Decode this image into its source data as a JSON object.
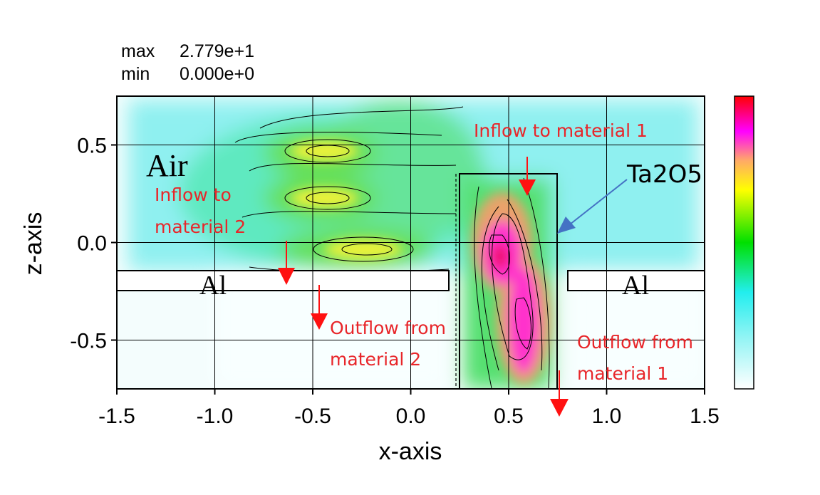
{
  "stats": {
    "max_label": "max",
    "max_value": "2.779e+1",
    "min_label": "min",
    "min_value": "0.000e+0"
  },
  "chart_data": {
    "type": "heatmap",
    "title": "",
    "xlabel": "x-axis",
    "ylabel": "z-axis",
    "xlim": [
      -1.5,
      1.5
    ],
    "ylim": [
      -0.75,
      0.75
    ],
    "x_ticks": [
      -1.5,
      -1.0,
      -0.5,
      0.0,
      0.5,
      1.0,
      1.5
    ],
    "x_tick_labels": [
      "-1.5",
      "-1.0",
      "-0.5",
      "0.0",
      "0.5",
      "1.0",
      "1.5"
    ],
    "y_ticks": [
      0.5,
      0.0,
      -0.5
    ],
    "y_tick_labels": [
      "0.5",
      "0.0",
      "-0.5"
    ],
    "grid": true,
    "value_range": [
      0,
      27.79
    ],
    "colorbar": {
      "colors": [
        "#ffffff",
        "#22eeee",
        "#00e000",
        "#ffff00",
        "#ff00ff",
        "#ff0000"
      ]
    },
    "hotspots": [
      {
        "x": -0.3,
        "z": 0.47,
        "value": 17
      },
      {
        "x": -0.3,
        "z": 0.23,
        "value": 16
      },
      {
        "x": -0.2,
        "z": -0.03,
        "value": 17
      },
      {
        "x": 0.48,
        "z": -0.1,
        "value": 27.79
      },
      {
        "x": 0.57,
        "z": -0.4,
        "value": 24
      }
    ],
    "regions": {
      "al_left": {
        "label": "Al",
        "x": [
          -1.5,
          0.2
        ],
        "z": [
          -0.245,
          -0.14
        ]
      },
      "al_right": {
        "label": "Al",
        "x": [
          0.8,
          1.5
        ],
        "z": [
          -0.245,
          -0.14
        ]
      },
      "ta2o5": {
        "x": [
          0.25,
          0.75
        ],
        "z": [
          -0.75,
          0.35
        ]
      }
    },
    "annotations": {
      "air": "Air",
      "ta2o5": "Ta2O5",
      "inflow1": "Inflow to material 1",
      "inflow2_line1": "Inflow to",
      "inflow2_line2": "material 2",
      "outflow2_line1": "Outflow from",
      "outflow2_line2": "material 2",
      "outflow1_line1": "Outflow from",
      "outflow1_line2": "material 1"
    },
    "colors": {
      "annotation_text": "#e8262a",
      "arrow_red": "#ff1111",
      "arrow_blue": "#4472c4",
      "grid": "#000000"
    }
  }
}
